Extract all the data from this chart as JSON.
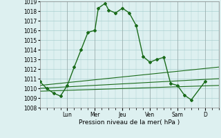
{
  "title": "",
  "xlabel": "Pression niveau de la mer( hPa )",
  "ylabel": "",
  "bg_color": "#ddf0f0",
  "grid_color": "#aacfcf",
  "line_color": "#1a6b1a",
  "ylim": [
    1008,
    1019
  ],
  "yticks": [
    1008,
    1009,
    1010,
    1011,
    1012,
    1013,
    1014,
    1015,
    1016,
    1017,
    1018,
    1019
  ],
  "day_labels": [
    "Lun",
    "Mer",
    "Jeu",
    "Ven",
    "Sam",
    "D"
  ],
  "day_positions": [
    2,
    4,
    6,
    8,
    10,
    12
  ],
  "xlim": [
    0,
    13
  ],
  "line_main": {
    "x": [
      0,
      0.5,
      1,
      1.5,
      2,
      2.5,
      3,
      3.5,
      4,
      4.25,
      4.75,
      5,
      5.5,
      6,
      6.5,
      7,
      7.5,
      8,
      8.5,
      9,
      9.5,
      10,
      10.5,
      11,
      12
    ],
    "y": [
      1010.7,
      1010.0,
      1009.5,
      1009.2,
      1010.3,
      1012.2,
      1014.0,
      1015.8,
      1016.0,
      1018.3,
      1018.8,
      1018.1,
      1017.8,
      1018.3,
      1017.8,
      1016.5,
      1013.3,
      1012.7,
      1013.0,
      1013.2,
      1010.5,
      1010.3,
      1009.3,
      1008.8,
      1010.7
    ]
  },
  "line_upper": {
    "x": [
      0,
      13
    ],
    "y": [
      1010.3,
      1012.2
    ]
  },
  "line_mid": {
    "x": [
      0,
      13
    ],
    "y": [
      1010.0,
      1011.0
    ]
  },
  "line_lower": {
    "x": [
      0,
      13
    ],
    "y": [
      1009.7,
      1010.3
    ]
  },
  "sep_color": "#888888",
  "xlabel_fontsize": 6.5,
  "tick_fontsize": 5.5
}
